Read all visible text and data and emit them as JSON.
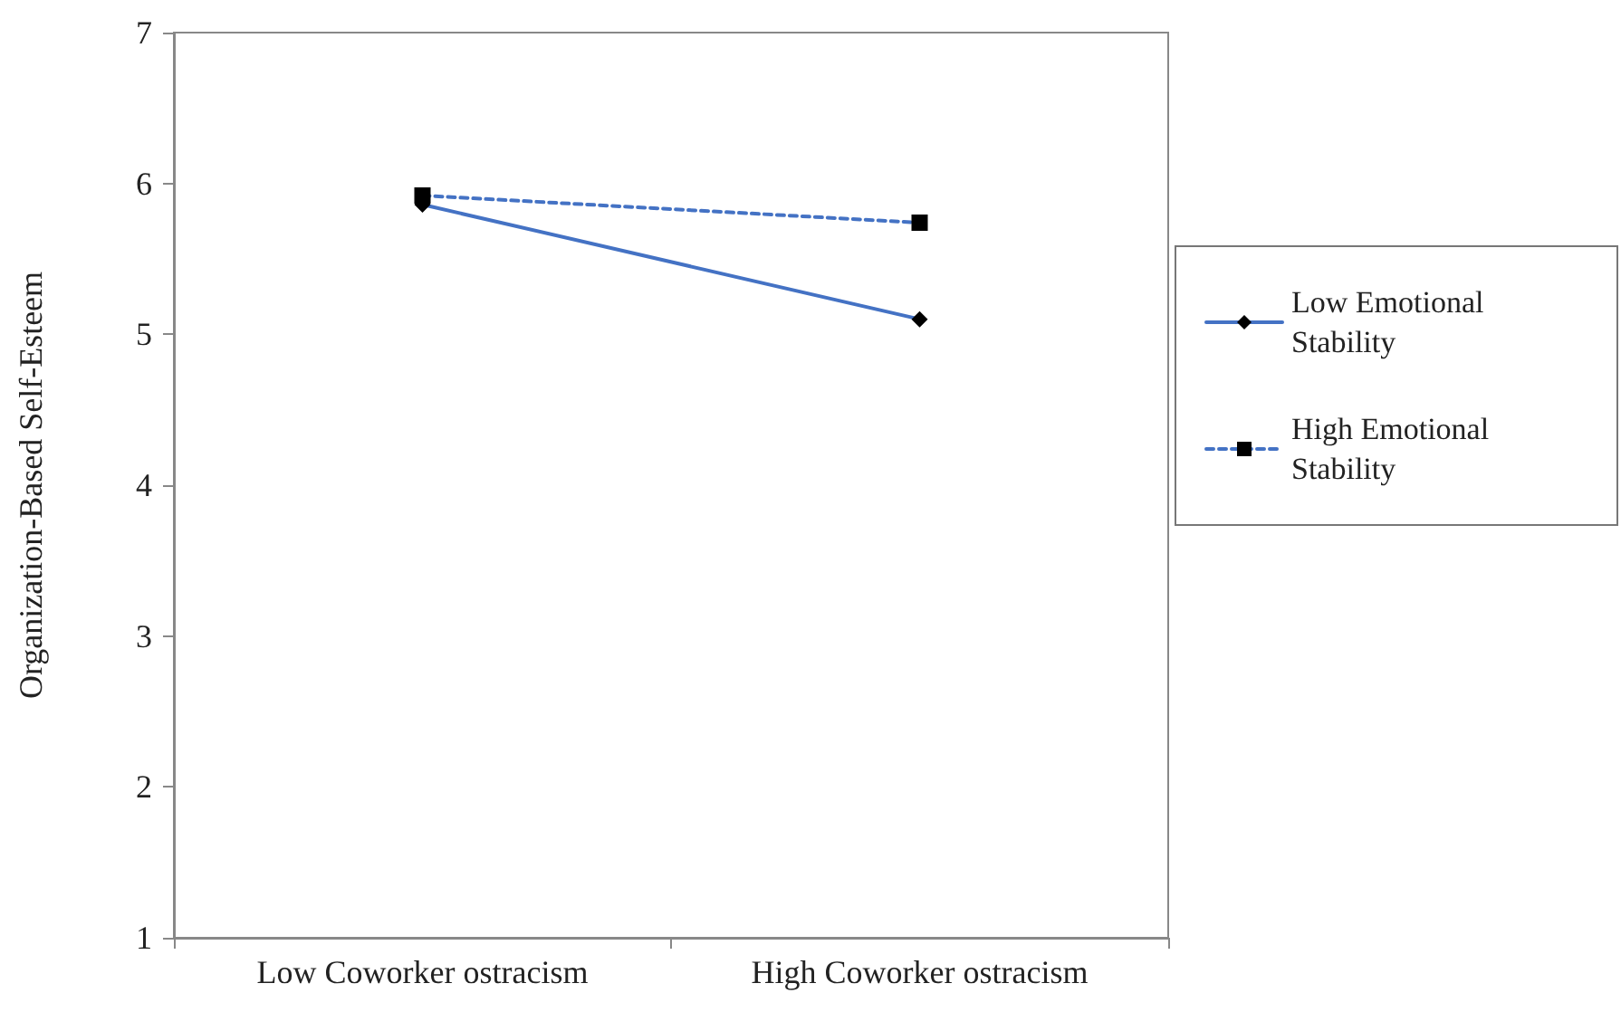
{
  "chart_data": {
    "type": "line",
    "ylabel": "Organization-Based Self-Esteem",
    "categories": [
      "Low Coworker ostracism",
      "High Coworker ostracism"
    ],
    "series": [
      {
        "name": "Low Emotional Stability",
        "color": "#4472c4",
        "values": [
          5.86,
          5.1
        ],
        "marker": "diamond",
        "line_style": "solid"
      },
      {
        "name": "High Emotional Stability",
        "color": "#4472c4",
        "values": [
          5.92,
          5.74
        ],
        "marker": "square",
        "line_style": "dashed"
      }
    ],
    "ylim": [
      1,
      7
    ],
    "yticks": [
      1,
      2,
      3,
      4,
      5,
      6,
      7
    ],
    "grid": false,
    "legend": "right"
  }
}
